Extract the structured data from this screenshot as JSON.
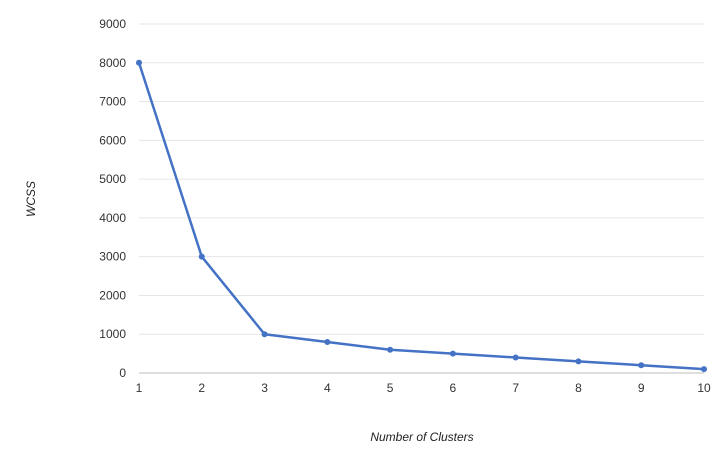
{
  "chart_data": {
    "type": "line",
    "title": "",
    "xlabel": "Number of Clusters",
    "ylabel": "WCSS",
    "x": [
      1,
      2,
      3,
      4,
      5,
      6,
      7,
      8,
      9,
      10
    ],
    "series": [
      {
        "values": [
          8000,
          3000,
          1000,
          800,
          600,
          500,
          400,
          300,
          200,
          100
        ]
      }
    ],
    "xlim": [
      1,
      10
    ],
    "ylim": [
      0,
      9000
    ],
    "y_ticks": [
      0,
      1000,
      2000,
      3000,
      4000,
      5000,
      6000,
      7000,
      8000,
      9000
    ],
    "x_ticks": [
      1,
      2,
      3,
      4,
      5,
      6,
      7,
      8,
      9,
      10
    ],
    "grid": true,
    "legend": "none",
    "colors": {
      "line": "#4472c4",
      "grid": "#e6e6e6"
    }
  }
}
